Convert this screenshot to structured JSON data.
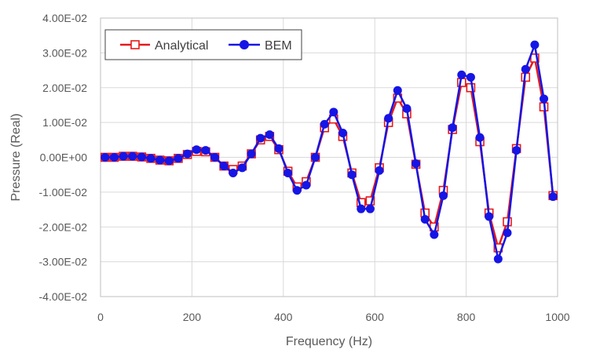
{
  "chart_data": {
    "type": "line",
    "title": "",
    "xlabel": "Frequency (Hz)",
    "ylabel": "Pressure (Real)",
    "xlim": [
      0,
      1000
    ],
    "ylim": [
      -0.04,
      0.04
    ],
    "xticks": [
      0,
      200,
      400,
      600,
      800,
      1000
    ],
    "yticks": [
      -0.04,
      -0.03,
      -0.02,
      -0.01,
      0,
      0.01,
      0.02,
      0.03,
      0.04
    ],
    "xtick_labels": [
      "0",
      "200",
      "400",
      "600",
      "800",
      "1000"
    ],
    "ytick_labels": [
      "-4.00E-02",
      "-3.00E-02",
      "-2.00E-02",
      "-1.00E-02",
      "0.00E+00",
      "1.00E-02",
      "2.00E-02",
      "3.00E-02",
      "4.00E-02"
    ],
    "grid": "vertical and horizontal major gridlines",
    "legend_position": "top-left",
    "x": [
      10,
      30,
      50,
      70,
      90,
      110,
      130,
      150,
      170,
      190,
      210,
      230,
      250,
      270,
      290,
      310,
      330,
      350,
      370,
      390,
      410,
      430,
      450,
      470,
      490,
      510,
      530,
      550,
      570,
      590,
      610,
      630,
      650,
      670,
      690,
      710,
      730,
      750,
      770,
      790,
      810,
      830,
      850,
      870,
      890,
      910,
      930,
      950,
      970,
      990
    ],
    "series": [
      {
        "name": "Analytical",
        "color": "#e41a1c",
        "marker": "open-square",
        "values": [
          0.0,
          0.0,
          0.0003,
          0.0003,
          0.0001,
          -0.0003,
          -0.0008,
          -0.001,
          -0.0003,
          0.0008,
          0.0017,
          0.0016,
          0.0,
          -0.0025,
          -0.0035,
          -0.0025,
          0.001,
          0.005,
          0.006,
          0.0022,
          -0.004,
          -0.0085,
          -0.007,
          0.0,
          0.0085,
          0.011,
          0.006,
          -0.0045,
          -0.013,
          -0.0125,
          -0.003,
          0.01,
          0.017,
          0.0125,
          -0.002,
          -0.016,
          -0.02,
          -0.0095,
          0.008,
          0.0215,
          0.02,
          0.0045,
          -0.016,
          -0.026,
          -0.0185,
          0.0025,
          0.023,
          0.0285,
          0.0145,
          -0.011
        ]
      },
      {
        "name": "BEM",
        "color": "#1515e6",
        "marker": "filled-circle",
        "values": [
          0.0,
          0.0,
          0.0003,
          0.0003,
          0.0001,
          -0.0003,
          -0.0008,
          -0.001,
          -0.0003,
          0.001,
          0.0022,
          0.002,
          0.0,
          -0.0025,
          -0.0045,
          -0.003,
          0.001,
          0.0055,
          0.0065,
          0.0025,
          -0.0045,
          -0.0095,
          -0.008,
          0.0,
          0.0095,
          0.013,
          0.007,
          -0.005,
          -0.0148,
          -0.0148,
          -0.0038,
          0.0112,
          0.0192,
          0.014,
          -0.0018,
          -0.0178,
          -0.0222,
          -0.011,
          0.0085,
          0.0237,
          0.023,
          0.0057,
          -0.017,
          -0.0292,
          -0.0217,
          0.002,
          0.0253,
          0.0323,
          0.0168,
          -0.0113
        ]
      }
    ]
  }
}
